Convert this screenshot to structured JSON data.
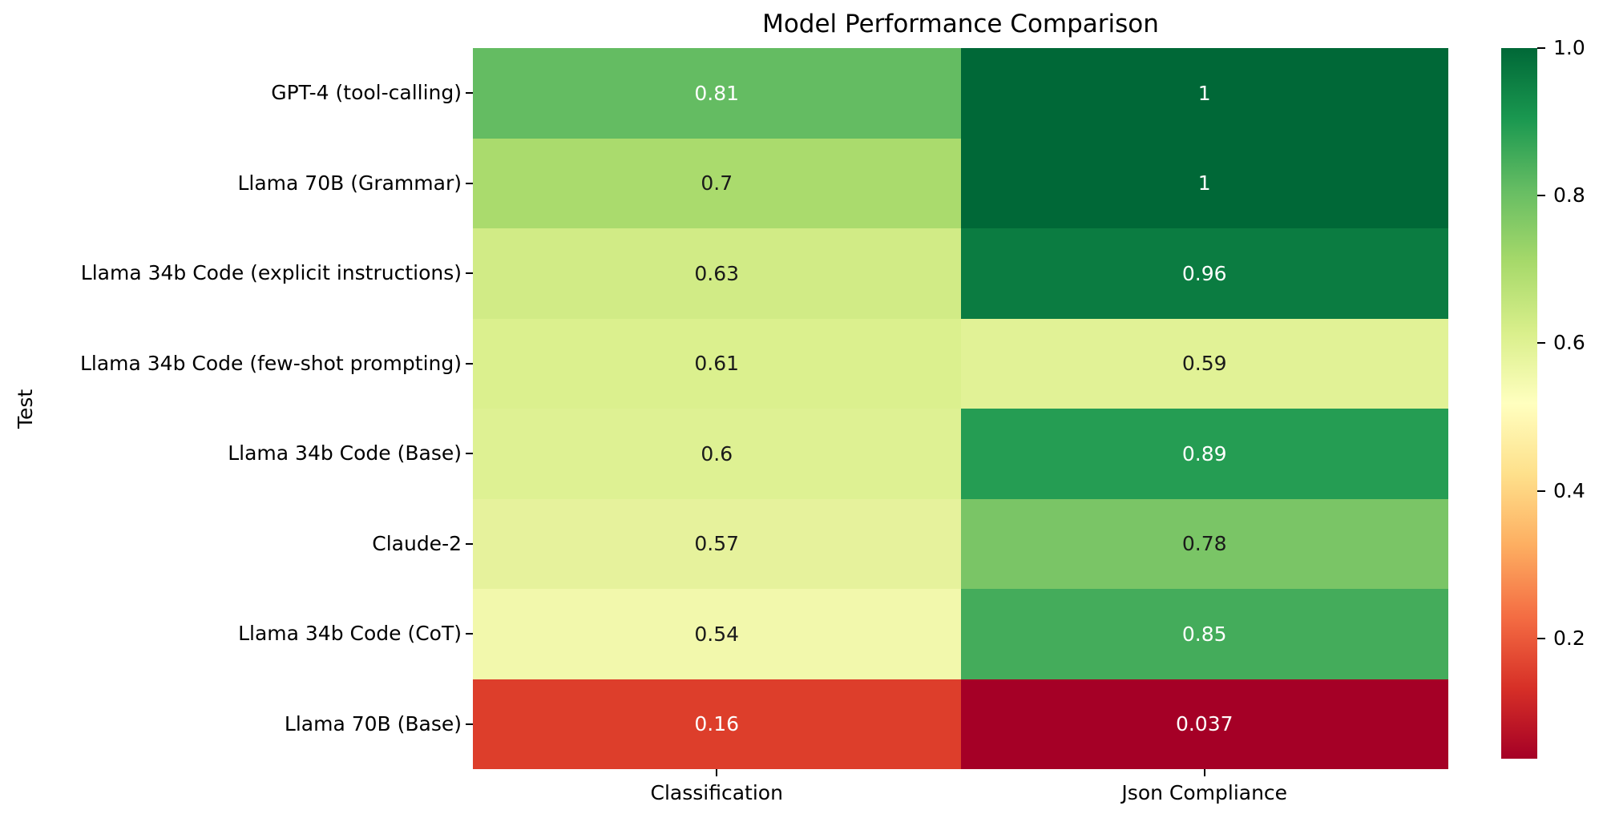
{
  "chart_data": {
    "type": "heatmap",
    "title": "Model Performance Comparison",
    "ylabel": "Test",
    "xlabel": "",
    "rows": [
      "GPT-4 (tool-calling)",
      "Llama 70B (Grammar)",
      "Llama 34b Code (explicit instructions)",
      "Llama 34b Code (few-shot prompting)",
      "Llama 34b Code (Base)",
      "Claude-2",
      "Llama 34b Code (CoT)",
      "Llama 70B (Base)"
    ],
    "columns": [
      "Classification",
      "Json Compliance"
    ],
    "values": [
      [
        0.81,
        1
      ],
      [
        0.7,
        1
      ],
      [
        0.63,
        0.96
      ],
      [
        0.61,
        0.59
      ],
      [
        0.6,
        0.89
      ],
      [
        0.57,
        0.78
      ],
      [
        0.54,
        0.85
      ],
      [
        0.16,
        0.037
      ]
    ],
    "cell_labels": [
      [
        "0.81",
        "1"
      ],
      [
        "0.7",
        "1"
      ],
      [
        "0.63",
        "0.96"
      ],
      [
        "0.61",
        "0.59"
      ],
      [
        "0.6",
        "0.89"
      ],
      [
        "0.57",
        "0.78"
      ],
      [
        "0.54",
        "0.85"
      ],
      [
        "0.16",
        "0.037"
      ]
    ],
    "cell_colors": [
      [
        "#64bc62",
        "#006837"
      ],
      [
        "#aadb6d",
        "#006837"
      ],
      [
        "#d1eb86",
        "#0b7c41"
      ],
      [
        "#dbf08e",
        "#e1f296"
      ],
      [
        "#def193",
        "#259d53"
      ],
      [
        "#e6f29c",
        "#7ac566"
      ],
      [
        "#f2f8ac",
        "#44ac5b"
      ],
      [
        "#dd3e2b",
        "#a50026"
      ]
    ],
    "cell_text_colors": [
      [
        "#ffffff",
        "#ffffff"
      ],
      [
        "#1a1a1a",
        "#ffffff"
      ],
      [
        "#1a1a1a",
        "#ffffff"
      ],
      [
        "#1a1a1a",
        "#1a1a1a"
      ],
      [
        "#1a1a1a",
        "#ffffff"
      ],
      [
        "#1a1a1a",
        "#1a1a1a"
      ],
      [
        "#1a1a1a",
        "#ffffff"
      ],
      [
        "#ffffff",
        "#ffffff"
      ]
    ],
    "colormap": "RdYlGn",
    "colorbar": {
      "min": 0.037,
      "max": 1.0,
      "tick_labels": [
        "1.0",
        "0.8",
        "0.6",
        "0.4",
        "0.2"
      ],
      "tick_values": [
        1.0,
        0.8,
        0.6,
        0.4,
        0.2
      ],
      "gradient_top_to_bottom": [
        "#006837",
        "#1a9850",
        "#66bd63",
        "#a6d96a",
        "#d9ef8b",
        "#ffffbf",
        "#fee08b",
        "#fdae61",
        "#f46d43",
        "#d73027",
        "#a50026"
      ]
    },
    "background": "#ffffff"
  }
}
